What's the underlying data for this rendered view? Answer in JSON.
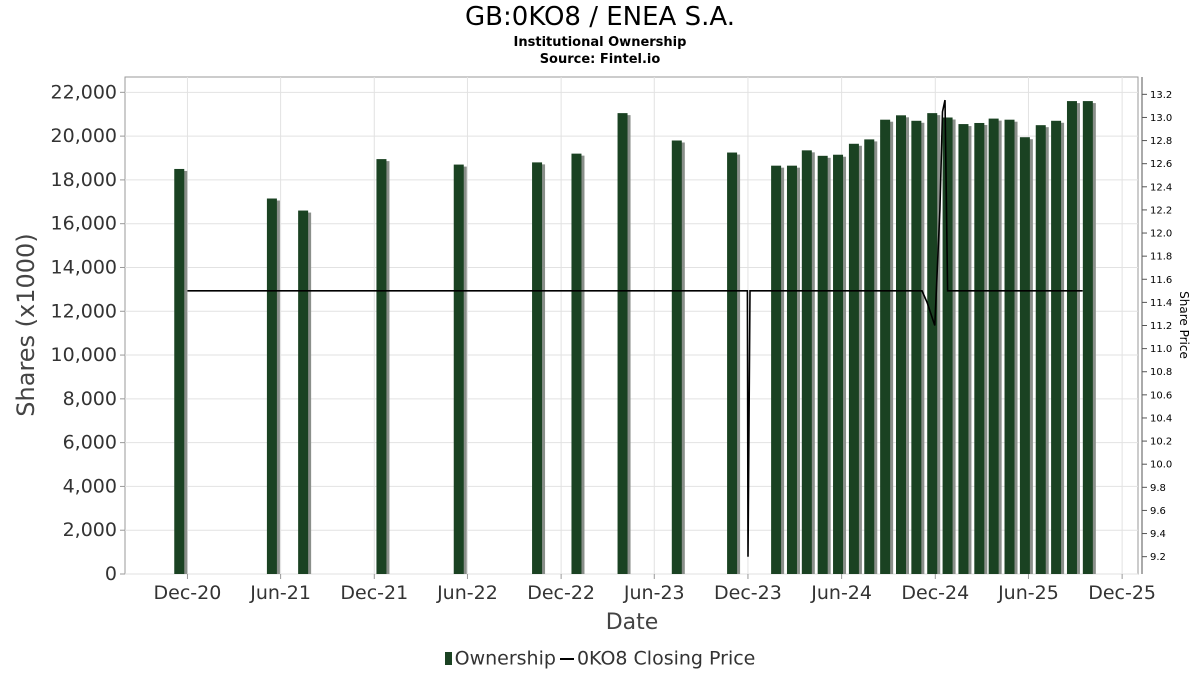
{
  "chart_data": {
    "type": "bar",
    "title": "GB:0KO8 / ENEA S.A.",
    "subtitles": [
      "Institutional Ownership",
      "Source: Fintel.io"
    ],
    "xlabel": "Date",
    "ylabel": "Shares (x1000)",
    "y2label": "Share Price",
    "ylim": [
      0,
      22700
    ],
    "y2lim": [
      9.05,
      13.35
    ],
    "yticks": [
      "0",
      "2,000",
      "4,000",
      "6,000",
      "8,000",
      "10,000",
      "12,000",
      "14,000",
      "16,000",
      "18,000",
      "20,000",
      "22,000"
    ],
    "y2ticks": [
      "9.2",
      "9.4",
      "9.6",
      "9.8",
      "10.0",
      "10.2",
      "10.4",
      "10.6",
      "10.8",
      "11.0",
      "11.2",
      "11.4",
      "11.6",
      "11.8",
      "12.0",
      "12.2",
      "12.4",
      "12.6",
      "12.8",
      "13.0",
      "13.2"
    ],
    "xticks": [
      "Dec-20",
      "Jun-21",
      "Dec-21",
      "Jun-22",
      "Dec-22",
      "Jun-23",
      "Dec-23",
      "Jun-24",
      "Dec-24",
      "Jun-25",
      "Dec-25"
    ],
    "grid": true,
    "legend_position": "bottom",
    "series": [
      {
        "name": "Ownership",
        "type": "bar",
        "color": "#1a4222",
        "x": [
          "2020-11-15",
          "2021-05-15",
          "2021-07-15",
          "2021-12-15",
          "2022-05-15",
          "2022-10-15",
          "2022-12-31",
          "2023-03-31",
          "2023-07-15",
          "2023-10-31",
          "2024-01-25",
          "2024-02-25",
          "2024-03-25",
          "2024-04-25",
          "2024-05-25",
          "2024-06-25",
          "2024-07-25",
          "2024-08-25",
          "2024-09-25",
          "2024-10-25",
          "2024-11-25",
          "2024-12-25",
          "2025-01-25",
          "2025-02-25",
          "2025-03-25",
          "2025-04-25",
          "2025-05-25",
          "2025-06-25",
          "2025-07-25",
          "2025-08-25",
          "2025-09-25"
        ],
        "values": [
          18500,
          17150,
          16600,
          18950,
          18700,
          18800,
          19200,
          21050,
          19800,
          19250,
          18650,
          18650,
          19350,
          19100,
          19150,
          19650,
          19850,
          20750,
          20950,
          20700,
          21050,
          20850,
          20550,
          20600,
          20800,
          20750,
          19950,
          20500,
          20700,
          21600,
          21600
        ]
      },
      {
        "name": "0KO8 Closing Price",
        "type": "line",
        "color": "#000000",
        "x": [
          "2020-12-01",
          "2023-11-30",
          "2023-12-01",
          "2023-12-05",
          "2024-11-05",
          "2024-11-15",
          "2024-11-30",
          "2024-12-10",
          "2024-12-15",
          "2024-12-20",
          "2024-12-25",
          "2025-09-15"
        ],
        "values": [
          11.5,
          11.5,
          9.2,
          11.5,
          11.5,
          11.4,
          11.2,
          12.2,
          13.05,
          13.15,
          11.5,
          11.5
        ]
      }
    ]
  },
  "legend": {
    "ownership_label": "Ownership",
    "price_label": "0KO8 Closing Price"
  }
}
